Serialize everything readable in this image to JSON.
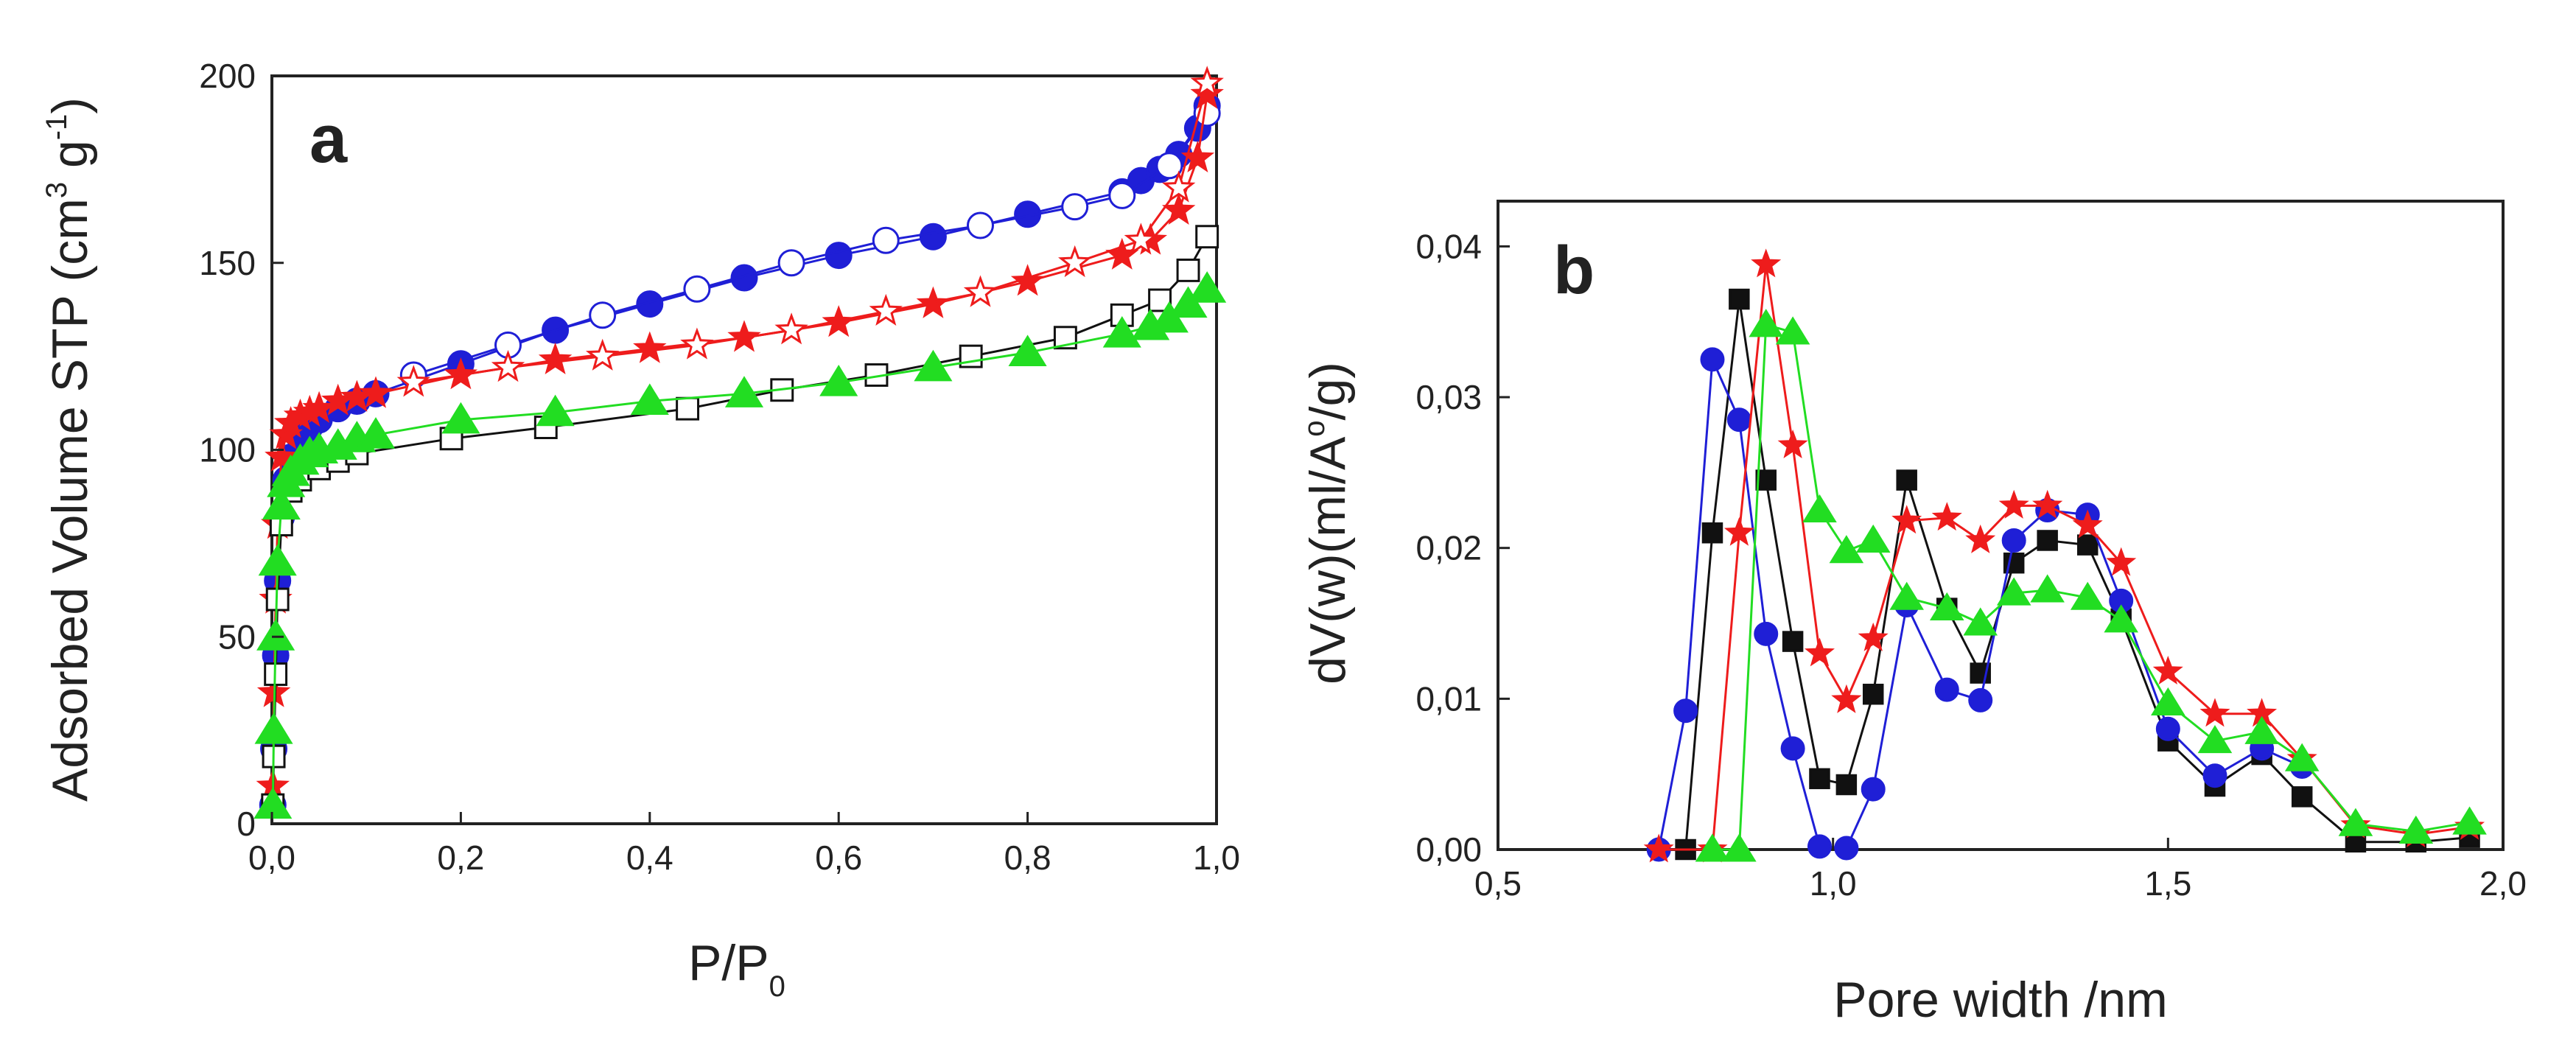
{
  "chart_data": [
    {
      "panel": "a",
      "type": "line",
      "title": "",
      "panel_label": "a",
      "xlabel_main": "P/P",
      "xlabel_sub": "0",
      "ylabel_main": "Adsorbed Volume STP (cm",
      "ylabel_sup1": "3",
      "ylabel_mid": " g",
      "ylabel_sup2": "-1",
      "ylabel_end": ")",
      "xlim": [
        0,
        1
      ],
      "ylim": [
        0,
        200
      ],
      "xticks": [
        0,
        0.2,
        0.4,
        0.6,
        0.8,
        1.0
      ],
      "xtick_labels": [
        "0,0",
        "0,2",
        "0,4",
        "0,6",
        "0,8",
        "1,0"
      ],
      "yticks": [
        0,
        50,
        100,
        150,
        200
      ],
      "ytick_labels": [
        "0",
        "50",
        "100",
        "150",
        "200"
      ],
      "grid": false,
      "series": [
        {
          "name": "blue-adsorption",
          "color": "#1f1fd6",
          "marker": "circle",
          "filled": true,
          "x": [
            0.001,
            0.002,
            0.004,
            0.006,
            0.01,
            0.015,
            0.02,
            0.03,
            0.04,
            0.05,
            0.07,
            0.09,
            0.11,
            0.2,
            0.3,
            0.4,
            0.5,
            0.6,
            0.7,
            0.8,
            0.9,
            0.92,
            0.94,
            0.96,
            0.98,
            0.99
          ],
          "y": [
            5,
            20,
            45,
            65,
            82,
            92,
            98,
            103,
            106,
            108,
            111,
            113,
            115,
            123,
            132,
            139,
            146,
            152,
            157,
            163,
            169,
            172,
            175,
            179,
            186,
            192
          ]
        },
        {
          "name": "blue-desorption",
          "color": "#1f1fd6",
          "marker": "circle",
          "filled": false,
          "x": [
            0.99,
            0.95,
            0.9,
            0.85,
            0.75,
            0.65,
            0.55,
            0.45,
            0.35,
            0.25,
            0.15
          ],
          "y": [
            190,
            176,
            168,
            165,
            160,
            156,
            150,
            143,
            136,
            128,
            120
          ]
        },
        {
          "name": "red-adsorption",
          "color": "#ee1c1c",
          "marker": "star",
          "filled": true,
          "x": [
            0.001,
            0.002,
            0.004,
            0.006,
            0.01,
            0.015,
            0.02,
            0.03,
            0.04,
            0.05,
            0.07,
            0.09,
            0.11,
            0.2,
            0.3,
            0.4,
            0.5,
            0.6,
            0.7,
            0.8,
            0.9,
            0.93,
            0.96,
            0.98,
            0.99
          ],
          "y": [
            10,
            35,
            60,
            80,
            98,
            104,
            107,
            109,
            110,
            111,
            113,
            114,
            115,
            120,
            124,
            127,
            130,
            134,
            139,
            145,
            152,
            156,
            164,
            178,
            195
          ]
        },
        {
          "name": "red-desorption",
          "color": "#ee1c1c",
          "marker": "star",
          "filled": false,
          "x": [
            0.99,
            0.96,
            0.92,
            0.85,
            0.75,
            0.65,
            0.55,
            0.45,
            0.35,
            0.25,
            0.15
          ],
          "y": [
            198,
            170,
            156,
            150,
            142,
            137,
            132,
            128,
            125,
            122,
            118
          ]
        },
        {
          "name": "black-desorption",
          "color": "#111111",
          "marker": "square",
          "filled": false,
          "x": [
            0.001,
            0.002,
            0.004,
            0.006,
            0.01,
            0.02,
            0.03,
            0.05,
            0.07,
            0.09,
            0.19,
            0.29,
            0.44,
            0.54,
            0.64,
            0.74,
            0.84,
            0.9,
            0.94,
            0.97,
            0.99
          ],
          "y": [
            5,
            18,
            40,
            60,
            80,
            89,
            92,
            95,
            97,
            99,
            103,
            106,
            111,
            116,
            120,
            125,
            130,
            136,
            140,
            148,
            157
          ]
        },
        {
          "name": "green-adsorption",
          "color": "#22dd22",
          "marker": "triangle",
          "filled": true,
          "x": [
            0.001,
            0.002,
            0.004,
            0.006,
            0.01,
            0.015,
            0.02,
            0.03,
            0.04,
            0.05,
            0.07,
            0.09,
            0.11,
            0.2,
            0.3,
            0.4,
            0.5,
            0.6,
            0.7,
            0.8,
            0.9,
            0.93,
            0.95,
            0.97,
            0.99
          ],
          "y": [
            5,
            25,
            50,
            70,
            85,
            91,
            94,
            97,
            99,
            100,
            101,
            103,
            104,
            108,
            110,
            113,
            115,
            118,
            122,
            126,
            131,
            133,
            135,
            139,
            143
          ]
        }
      ]
    },
    {
      "panel": "b",
      "type": "line",
      "title": "",
      "panel_label": "b",
      "xlabel_main": "Pore width /nm",
      "ylabel_main": "dV(w)(ml/A",
      "ylabel_sup1": "o",
      "ylabel_end": "/g)",
      "xlim": [
        0.5,
        2.0
      ],
      "ylim": [
        0,
        0.043
      ],
      "xticks": [
        0.5,
        1.0,
        1.5,
        2.0
      ],
      "xtick_labels": [
        "0,5",
        "1,0",
        "1,5",
        "2,0"
      ],
      "yticks": [
        0,
        0.01,
        0.02,
        0.03,
        0.04
      ],
      "ytick_labels": [
        "0,00",
        "0,01",
        "0,02",
        "0,03",
        "0,04"
      ],
      "grid": false,
      "series": [
        {
          "name": "black",
          "color": "#111111",
          "marker": "square",
          "filled": true,
          "x": [
            0.78,
            0.82,
            0.86,
            0.9,
            0.94,
            0.98,
            1.02,
            1.06,
            1.11,
            1.17,
            1.22,
            1.27,
            1.32,
            1.38,
            1.43,
            1.5,
            1.57,
            1.64,
            1.7,
            1.78,
            1.87,
            1.95
          ],
          "y": [
            0.0,
            0.021,
            0.0365,
            0.0245,
            0.0138,
            0.0047,
            0.0043,
            0.0103,
            0.0245,
            0.016,
            0.0117,
            0.019,
            0.0205,
            0.0202,
            0.0153,
            0.0072,
            0.0042,
            0.0063,
            0.0035,
            0.0005,
            0.0005,
            0.0008
          ]
        },
        {
          "name": "blue",
          "color": "#1f1fd6",
          "marker": "circle",
          "filled": true,
          "x": [
            0.74,
            0.78,
            0.82,
            0.86,
            0.9,
            0.94,
            0.98,
            1.02,
            1.06,
            1.11,
            1.17,
            1.22,
            1.27,
            1.32,
            1.38,
            1.43,
            1.5,
            1.57,
            1.64,
            1.7
          ],
          "y": [
            0.0,
            0.0092,
            0.0325,
            0.0285,
            0.0143,
            0.0067,
            0.0002,
            0.0001,
            0.004,
            0.0162,
            0.0106,
            0.0099,
            0.0205,
            0.0225,
            0.0222,
            0.0165,
            0.008,
            0.0049,
            0.0067,
            0.0055
          ]
        },
        {
          "name": "red",
          "color": "#ee1c1c",
          "marker": "star",
          "filled": true,
          "x": [
            0.74,
            0.82,
            0.86,
            0.9,
            0.94,
            0.98,
            1.02,
            1.06,
            1.11,
            1.17,
            1.22,
            1.27,
            1.32,
            1.38,
            1.43,
            1.5,
            1.57,
            1.64,
            1.7,
            1.78,
            1.87,
            1.95
          ],
          "y": [
            0.0,
            0.0,
            0.021,
            0.0388,
            0.0268,
            0.013,
            0.0099,
            0.014,
            0.0218,
            0.022,
            0.0205,
            0.0228,
            0.0228,
            0.0215,
            0.019,
            0.0118,
            0.009,
            0.009,
            0.006,
            0.0016,
            0.001,
            0.0015
          ]
        },
        {
          "name": "green",
          "color": "#22dd22",
          "marker": "triangle",
          "filled": true,
          "x": [
            0.82,
            0.86,
            0.9,
            0.94,
            0.98,
            1.02,
            1.06,
            1.11,
            1.17,
            1.22,
            1.27,
            1.32,
            1.38,
            1.43,
            1.5,
            1.57,
            1.64,
            1.7,
            1.78,
            1.87,
            1.95
          ],
          "y": [
            0.0,
            0.0,
            0.0348,
            0.0343,
            0.0225,
            0.0198,
            0.0205,
            0.0167,
            0.016,
            0.015,
            0.017,
            0.0172,
            0.0167,
            0.0152,
            0.0097,
            0.0072,
            0.0078,
            0.006,
            0.0017,
            0.0012,
            0.0018
          ]
        }
      ]
    }
  ]
}
